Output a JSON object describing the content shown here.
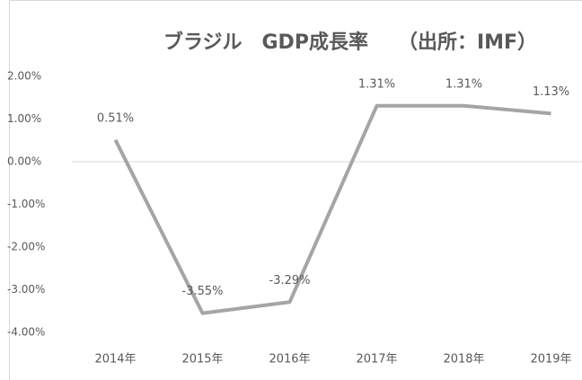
{
  "chart_data": {
    "type": "line",
    "title": "ブラジル　GDP成長率　　（出所：IMF）",
    "categories": [
      "2014年",
      "2015年",
      "2016年",
      "2017年",
      "2018年",
      "2019年"
    ],
    "series": [
      {
        "name": "GDP成長率",
        "color": "#a5a5a5",
        "values": [
          0.51,
          -3.55,
          -3.29,
          1.31,
          1.31,
          1.13
        ],
        "value_labels": [
          "0.51%",
          "-3.55%",
          "-3.29%",
          "1.31%",
          "1.31%",
          "1.13%"
        ]
      }
    ],
    "ylim": [
      -4,
      2
    ],
    "yticks": [
      {
        "value": -4,
        "label": "-4.00%"
      },
      {
        "value": -3,
        "label": "-3.00%"
      },
      {
        "value": -2,
        "label": "-2.00%"
      },
      {
        "value": -1,
        "label": "-1.00%"
      },
      {
        "value": 0,
        "label": "0.00%"
      },
      {
        "value": 1,
        "label": "1.00%"
      },
      {
        "value": 2,
        "label": "2.00%"
      }
    ],
    "grid": false
  }
}
